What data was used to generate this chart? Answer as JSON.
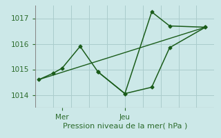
{
  "bg_color": "#cce8e8",
  "grid_color": "#aacccc",
  "line_color": "#1a5c1a",
  "marker_color": "#1a5c1a",
  "text_color": "#2a6a2a",
  "xlabel": "Pression niveau de la mer( hPa )",
  "ylim": [
    1013.5,
    1017.5
  ],
  "yticks": [
    1014,
    1015,
    1016,
    1017
  ],
  "xlim": [
    0,
    10
  ],
  "xtick_positions": [
    1.5,
    5.0
  ],
  "xtick_labels": [
    "Mer",
    "Jeu"
  ],
  "xgrid_positions": [
    0.0,
    1.0,
    2.0,
    3.0,
    4.0,
    5.0,
    6.0,
    7.0,
    8.0,
    9.0,
    10.0
  ],
  "series1_x": [
    0.2,
    1.0,
    1.5,
    2.5,
    3.5,
    5.0,
    6.5,
    7.5,
    9.5
  ],
  "series1_y": [
    1014.6,
    1014.85,
    1015.05,
    1015.9,
    1014.9,
    1014.05,
    1014.3,
    1015.85,
    1016.65
  ],
  "series2_x": [
    0.2,
    9.5
  ],
  "series2_y": [
    1014.6,
    1016.65
  ],
  "series3_x": [
    3.5,
    5.0,
    6.5,
    7.5,
    9.5
  ],
  "series3_y": [
    1014.9,
    1014.05,
    1017.25,
    1016.7,
    1016.65
  ],
  "figsize": [
    3.2,
    2.0
  ],
  "dpi": 100
}
